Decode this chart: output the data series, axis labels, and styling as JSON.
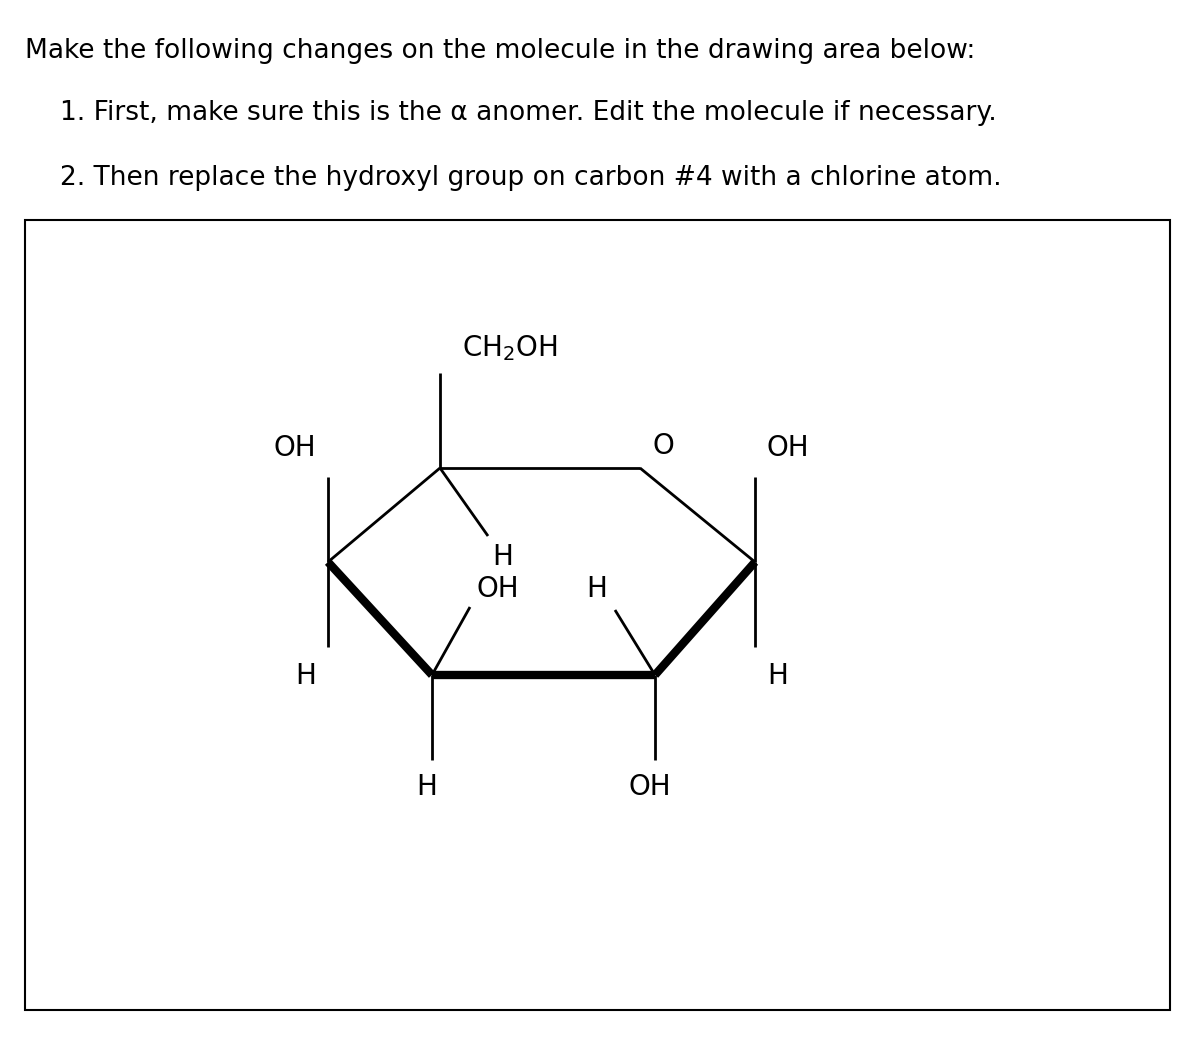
{
  "title_text": "Make the following changes on the molecule in the drawing area below:",
  "instruction1": "1. First, make sure this is the α anomer. Edit the molecule if necessary.",
  "instruction2": "2. Then replace the hydroxyl group on carbon #4 with a chlorine atom.",
  "title_fontsize": 19,
  "instruction_fontsize": 19,
  "bg_color": "#ffffff",
  "box_color": "#000000",
  "ring_color": "#000000",
  "bold_color": "#000000",
  "text_color": "#000000",
  "ring_lw": 2.0,
  "bold_lw": 6.0,
  "font_family": "DejaVu Sans"
}
